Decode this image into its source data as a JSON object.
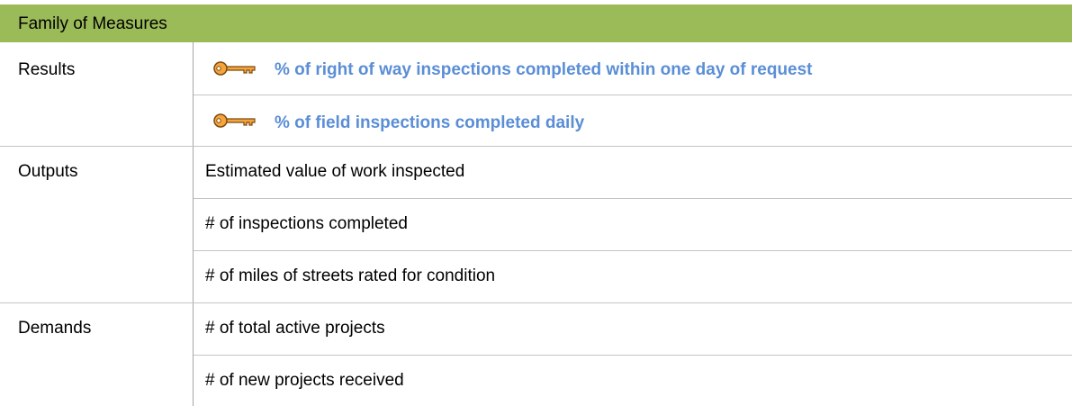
{
  "header": {
    "title": "Family of Measures"
  },
  "rows": [
    {
      "label": "Results",
      "items": [
        "% of right of way inspections completed within one day of request",
        "% of field inspections completed daily"
      ]
    },
    {
      "label": "Outputs",
      "items": [
        "Estimated value of work inspected",
        "# of inspections completed",
        "# of miles of streets rated for condition"
      ]
    },
    {
      "label": "Demands",
      "items": [
        "# of total active projects",
        "# of new projects received"
      ]
    }
  ]
}
